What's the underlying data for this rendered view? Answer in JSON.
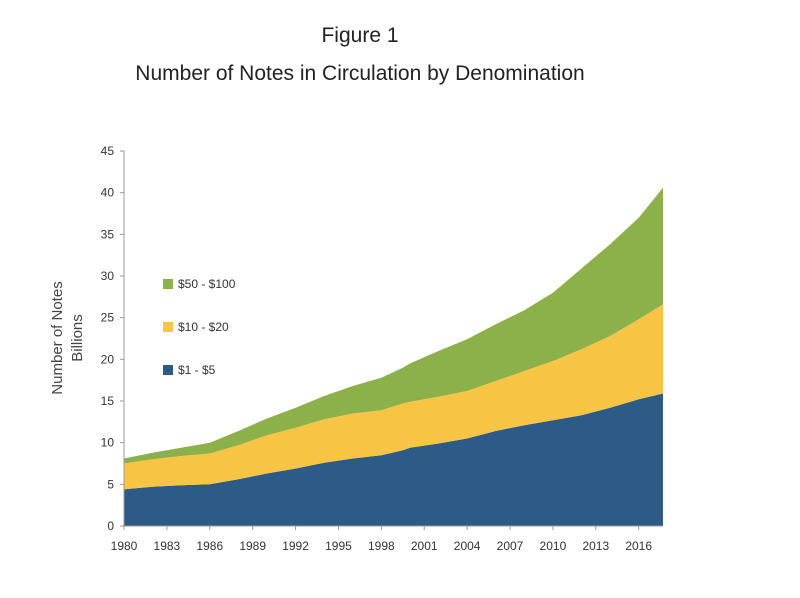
{
  "chart_data": {
    "type": "area",
    "stacked": true,
    "title": "Figure 1",
    "subtitle": "Number of Notes in Circulation by Denomination",
    "ylabel": "Number of Notes",
    "ylabel_unit": "Billions",
    "xlabel": "",
    "ylim": [
      0,
      45
    ],
    "xlim": [
      1980,
      2017.7
    ],
    "y_ticks": [
      "0",
      "5",
      "10",
      "15",
      "20",
      "25",
      "30",
      "35",
      "40",
      "45"
    ],
    "x_ticks": [
      "1980",
      "1983",
      "1986",
      "1989",
      "1992",
      "1995",
      "1998",
      "2001",
      "2004",
      "2007",
      "2010",
      "2013",
      "2016"
    ],
    "legend_position": "left",
    "x": [
      1980,
      1982,
      1984,
      1986,
      1988,
      1990,
      1992,
      1994,
      1996,
      1998,
      1999.5,
      2000,
      2002,
      2004,
      2006,
      2008,
      2010,
      2012,
      2014,
      2016,
      2017.7
    ],
    "series": [
      {
        "name": "$1 - $5",
        "color": "#2e5a87",
        "values": [
          4.4,
          4.7,
          4.9,
          5.0,
          5.6,
          6.3,
          6.9,
          7.6,
          8.1,
          8.5,
          9.1,
          9.4,
          9.9,
          10.5,
          11.4,
          12.1,
          12.7,
          13.3,
          14.2,
          15.2,
          15.9
        ]
      },
      {
        "name": "$10 - $20",
        "color": "#f8c444",
        "values": [
          3.1,
          3.3,
          3.5,
          3.7,
          4.1,
          4.6,
          4.9,
          5.2,
          5.4,
          5.4,
          5.6,
          5.5,
          5.6,
          5.7,
          6.0,
          6.5,
          7.1,
          7.9,
          8.6,
          9.6,
          10.7
        ]
      },
      {
        "name": "$50 - $100",
        "color": "#8cb04a",
        "values": [
          0.6,
          0.8,
          1.0,
          1.3,
          1.7,
          2.0,
          2.4,
          2.8,
          3.3,
          3.9,
          4.3,
          4.6,
          5.5,
          6.2,
          6.8,
          7.3,
          8.2,
          9.7,
          11.0,
          12.2,
          14.0
        ]
      }
    ]
  }
}
